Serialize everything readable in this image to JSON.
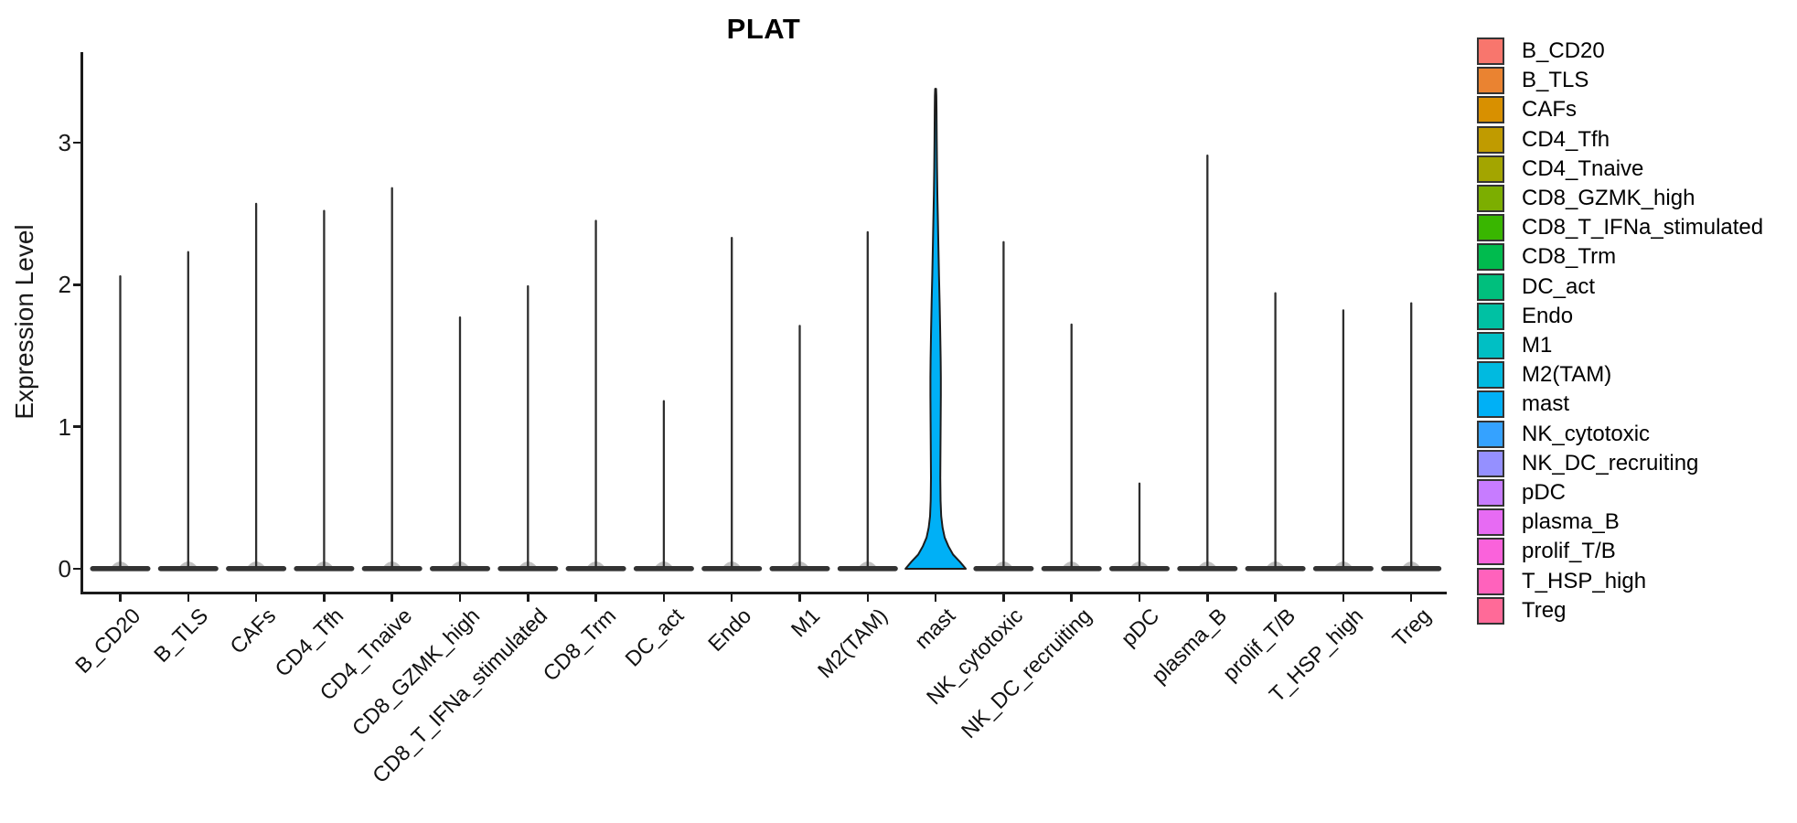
{
  "title": "PLAT",
  "y_axis": {
    "label": "Expression Level",
    "ticks": [
      0,
      1,
      2,
      3
    ]
  },
  "x_axis": {
    "categories": [
      "B_CD20",
      "B_TLS",
      "CAFs",
      "CD4_Tfh",
      "CD4_Tnaive",
      "CD8_GZMK_high",
      "CD8_T_IFNa_stimulated",
      "CD8_Trm",
      "DC_act",
      "Endo",
      "M1",
      "M2(TAM)",
      "mast",
      "NK_cytotoxic",
      "NK_DC_recruiting",
      "pDC",
      "plasma_B",
      "prolif_T/B",
      "T_HSP_high",
      "Treg"
    ]
  },
  "legend": {
    "items": [
      {
        "label": "B_CD20",
        "color": "#F8766D"
      },
      {
        "label": "B_TLS",
        "color": "#EA8331"
      },
      {
        "label": "CAFs",
        "color": "#D89000"
      },
      {
        "label": "CD4_Tfh",
        "color": "#C09B00"
      },
      {
        "label": "CD4_Tnaive",
        "color": "#A3A500"
      },
      {
        "label": "CD8_GZMK_high",
        "color": "#7CAE00"
      },
      {
        "label": "CD8_T_IFNa_stimulated",
        "color": "#39B600"
      },
      {
        "label": "CD8_Trm",
        "color": "#00BB4E"
      },
      {
        "label": "DC_act",
        "color": "#00BF7D"
      },
      {
        "label": "Endo",
        "color": "#00C1A3"
      },
      {
        "label": "M1",
        "color": "#00BFC4"
      },
      {
        "label": "M2(TAM)",
        "color": "#00BAE0"
      },
      {
        "label": "mast",
        "color": "#00B0F6"
      },
      {
        "label": "NK_cytotoxic",
        "color": "#35A2FF"
      },
      {
        "label": "NK_DC_recruiting",
        "color": "#9590FF"
      },
      {
        "label": "pDC",
        "color": "#C77CFF"
      },
      {
        "label": "plasma_B",
        "color": "#E76BF3"
      },
      {
        "label": "prolif_T/B",
        "color": "#FA62DB"
      },
      {
        "label": "T_HSP_high",
        "color": "#FF62BC"
      },
      {
        "label": "Treg",
        "color": "#FF6A98"
      }
    ]
  },
  "chart_data": {
    "type": "violin",
    "title": "PLAT",
    "xlabel": "",
    "ylabel": "Expression Level",
    "ylim": [
      0,
      3.64
    ],
    "y_ticks": [
      0,
      1,
      2,
      3
    ],
    "grid": false,
    "legend_position": "right",
    "categories": [
      "B_CD20",
      "B_TLS",
      "CAFs",
      "CD4_Tfh",
      "CD4_Tnaive",
      "CD8_GZMK_high",
      "CD8_T_IFNa_stimulated",
      "CD8_Trm",
      "DC_act",
      "Endo",
      "M1",
      "M2(TAM)",
      "mast",
      "NK_cytotoxic",
      "NK_DC_recruiting",
      "pDC",
      "plasma_B",
      "prolif_T/B",
      "T_HSP_high",
      "Treg"
    ],
    "colors": [
      "#F8766D",
      "#EA8331",
      "#D89000",
      "#C09B00",
      "#A3A500",
      "#7CAE00",
      "#39B600",
      "#00BB4E",
      "#00BF7D",
      "#00C1A3",
      "#00BFC4",
      "#00BAE0",
      "#00B0F6",
      "#35A2FF",
      "#9590FF",
      "#C77CFF",
      "#E76BF3",
      "#FA62DB",
      "#FF62BC",
      "#FF6A98"
    ],
    "series": [
      {
        "name": "max_expression_level",
        "values": [
          2.06,
          2.23,
          2.57,
          2.52,
          2.68,
          1.77,
          1.99,
          2.45,
          1.18,
          2.33,
          1.71,
          2.37,
          3.38,
          2.3,
          1.72,
          0.6,
          2.91,
          1.94,
          1.82,
          1.87
        ]
      }
    ],
    "description": "Violin plot of PLAT expression per cell type. Density is concentrated at 0 for all cell types (violins collapse to a wide flat base at 0 with a thin spike to the max value); only 'mast' shows a visibly filled violin body.",
    "highlight_category": "mast",
    "mast_violin_profile": {
      "note": "points are [expression_value, relative_half_width 0-1]",
      "points": [
        [
          0,
          1.0
        ],
        [
          0.05,
          0.8
        ],
        [
          0.1,
          0.58
        ],
        [
          0.16,
          0.42
        ],
        [
          0.22,
          0.3
        ],
        [
          0.29,
          0.23
        ],
        [
          0.37,
          0.185
        ],
        [
          0.48,
          0.165
        ],
        [
          0.64,
          0.155
        ],
        [
          0.84,
          0.16
        ],
        [
          1.03,
          0.168
        ],
        [
          1.22,
          0.173
        ],
        [
          1.35,
          0.173
        ],
        [
          1.48,
          0.167
        ],
        [
          1.67,
          0.152
        ],
        [
          1.87,
          0.132
        ],
        [
          2.06,
          0.112
        ],
        [
          2.25,
          0.093
        ],
        [
          2.45,
          0.075
        ],
        [
          2.64,
          0.059
        ],
        [
          2.83,
          0.046
        ],
        [
          3.03,
          0.036
        ],
        [
          3.22,
          0.029
        ],
        [
          3.33,
          0.024
        ],
        [
          3.38,
          0.015
        ]
      ]
    }
  }
}
